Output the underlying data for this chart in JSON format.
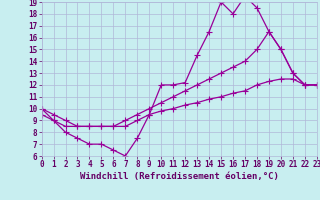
{
  "xlabel": "Windchill (Refroidissement éolien,°C)",
  "background_color": "#c8eef0",
  "line_color": "#990099",
  "xmin": 0,
  "xmax": 23,
  "ymin": 6,
  "ymax": 19,
  "line1_x": [
    0,
    1,
    2,
    3,
    4,
    5,
    6,
    7,
    8,
    9,
    10,
    11,
    12,
    13,
    14,
    15,
    16,
    17,
    18,
    19,
    20,
    21,
    22,
    23
  ],
  "line1_y": [
    10.0,
    9.0,
    8.0,
    7.5,
    7.0,
    7.0,
    6.5,
    6.0,
    7.5,
    9.5,
    12.0,
    12.0,
    12.2,
    14.5,
    16.5,
    19.0,
    18.0,
    19.5,
    18.5,
    16.5,
    15.0,
    13.0,
    12.0,
    12.0
  ],
  "line2_x": [
    0,
    1,
    2,
    3,
    4,
    5,
    6,
    7,
    8,
    9,
    10,
    11,
    12,
    13,
    14,
    15,
    16,
    17,
    18,
    19,
    20,
    21,
    22,
    23
  ],
  "line2_y": [
    10.0,
    9.5,
    9.0,
    8.5,
    8.5,
    8.5,
    8.5,
    9.0,
    9.5,
    10.0,
    10.5,
    11.0,
    11.5,
    12.0,
    12.5,
    13.0,
    13.5,
    14.0,
    15.0,
    16.5,
    15.0,
    13.0,
    12.0,
    12.0
  ],
  "line3_x": [
    0,
    1,
    2,
    3,
    4,
    5,
    6,
    7,
    8,
    9,
    10,
    11,
    12,
    13,
    14,
    15,
    16,
    17,
    18,
    19,
    20,
    21,
    22,
    23
  ],
  "line3_y": [
    9.5,
    9.0,
    8.5,
    8.5,
    8.5,
    8.5,
    8.5,
    8.5,
    9.0,
    9.5,
    9.8,
    10.0,
    10.3,
    10.5,
    10.8,
    11.0,
    11.3,
    11.5,
    12.0,
    12.3,
    12.5,
    12.5,
    12.0,
    12.0
  ],
  "marker": "+",
  "markersize": 4,
  "linewidth": 0.9,
  "fontsize_ticks": 5.5,
  "fontsize_xlabel": 6.5,
  "grid_color": "#b0b8d8",
  "tick_color": "#660066"
}
